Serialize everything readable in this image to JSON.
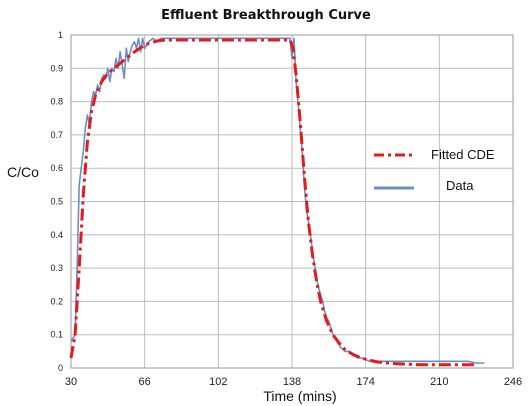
{
  "chart_data": {
    "type": "line",
    "title": "Effluent Breakthrough Curve",
    "xlabel": "Time (mins)",
    "ylabel": "C/Co",
    "xlim": [
      30,
      246
    ],
    "ylim": [
      0,
      1
    ],
    "x_ticks": [
      "30",
      "66",
      "102",
      "138",
      "174",
      "210",
      "246"
    ],
    "y_ticks": [
      "0",
      "0.1",
      "0.2",
      "0.3",
      "0.4",
      "0.5",
      "0.6",
      "0.7",
      "0.8",
      "0.9",
      "1"
    ],
    "grid": true,
    "legend_position": "right",
    "series": [
      {
        "name": "Fitted CDE",
        "color": "#e41a1c",
        "style": "dash-dot",
        "x": [
          30,
          32,
          34,
          36,
          38,
          40,
          42,
          45,
          48,
          52,
          56,
          60,
          64,
          68,
          72,
          76,
          80,
          90,
          100,
          110,
          120,
          130,
          137,
          138.5,
          140,
          142,
          144,
          146,
          148,
          150,
          152,
          155,
          158,
          161,
          164,
          168,
          172,
          176,
          180,
          186,
          192,
          200,
          210,
          220,
          228
        ],
        "y": [
          0.03,
          0.1,
          0.3,
          0.52,
          0.68,
          0.77,
          0.82,
          0.86,
          0.885,
          0.905,
          0.925,
          0.945,
          0.962,
          0.975,
          0.982,
          0.985,
          0.985,
          0.985,
          0.985,
          0.985,
          0.985,
          0.985,
          0.985,
          0.96,
          0.88,
          0.74,
          0.58,
          0.44,
          0.34,
          0.26,
          0.2,
          0.14,
          0.1,
          0.075,
          0.055,
          0.04,
          0.03,
          0.023,
          0.018,
          0.014,
          0.012,
          0.01,
          0.01,
          0.01,
          0.01
        ]
      },
      {
        "name": "Data",
        "color": "#6b8fc4",
        "style": "solid",
        "x": [
          30,
          31,
          32,
          33,
          34,
          35,
          36,
          37,
          38,
          39,
          40,
          41,
          42,
          43,
          44,
          45,
          46,
          47,
          48,
          49,
          50,
          51,
          52,
          53,
          54,
          55,
          56,
          57,
          58,
          59,
          60,
          61,
          62,
          63,
          64,
          65,
          66,
          68,
          70,
          72,
          74,
          76,
          78,
          80,
          82,
          84,
          86,
          88,
          90,
          92,
          94,
          96,
          98,
          100,
          104,
          108,
          112,
          116,
          120,
          124,
          128,
          130,
          132,
          134,
          136,
          137,
          138,
          139,
          140,
          141,
          142,
          143,
          144,
          145,
          146,
          147,
          148,
          149,
          150,
          151,
          152,
          153,
          154,
          155,
          156,
          157,
          158,
          159,
          160,
          161,
          162,
          164,
          166,
          168,
          170,
          172,
          174,
          176,
          178,
          180,
          184,
          188,
          192,
          196,
          200,
          204,
          208,
          212,
          216,
          220,
          224,
          228,
          232
        ],
        "y": [
          0.08,
          0.09,
          0.1,
          0.3,
          0.55,
          0.6,
          0.65,
          0.72,
          0.76,
          0.73,
          0.8,
          0.83,
          0.82,
          0.85,
          0.83,
          0.87,
          0.88,
          0.87,
          0.9,
          0.86,
          0.9,
          0.89,
          0.93,
          0.9,
          0.95,
          0.91,
          0.87,
          0.96,
          0.92,
          0.95,
          0.97,
          0.98,
          0.96,
          0.99,
          0.95,
          0.99,
          0.96,
          0.98,
          0.99,
          0.98,
          0.99,
          0.99,
          0.99,
          0.99,
          0.99,
          0.99,
          0.99,
          0.99,
          0.99,
          0.99,
          0.99,
          0.99,
          0.99,
          0.99,
          0.99,
          0.99,
          0.99,
          0.99,
          0.99,
          0.99,
          0.99,
          0.99,
          0.99,
          0.99,
          0.99,
          0.99,
          0.93,
          0.99,
          0.86,
          0.8,
          0.72,
          0.65,
          0.55,
          0.48,
          0.44,
          0.4,
          0.35,
          0.31,
          0.27,
          0.24,
          0.22,
          0.2,
          0.17,
          0.15,
          0.14,
          0.12,
          0.1,
          0.09,
          0.08,
          0.07,
          0.06,
          0.05,
          0.05,
          0.04,
          0.03,
          0.03,
          0.025,
          0.02,
          0.02,
          0.02,
          0.02,
          0.02,
          0.02,
          0.02,
          0.02,
          0.02,
          0.02,
          0.02,
          0.02,
          0.02,
          0.02,
          0.015,
          0.015
        ]
      }
    ]
  }
}
